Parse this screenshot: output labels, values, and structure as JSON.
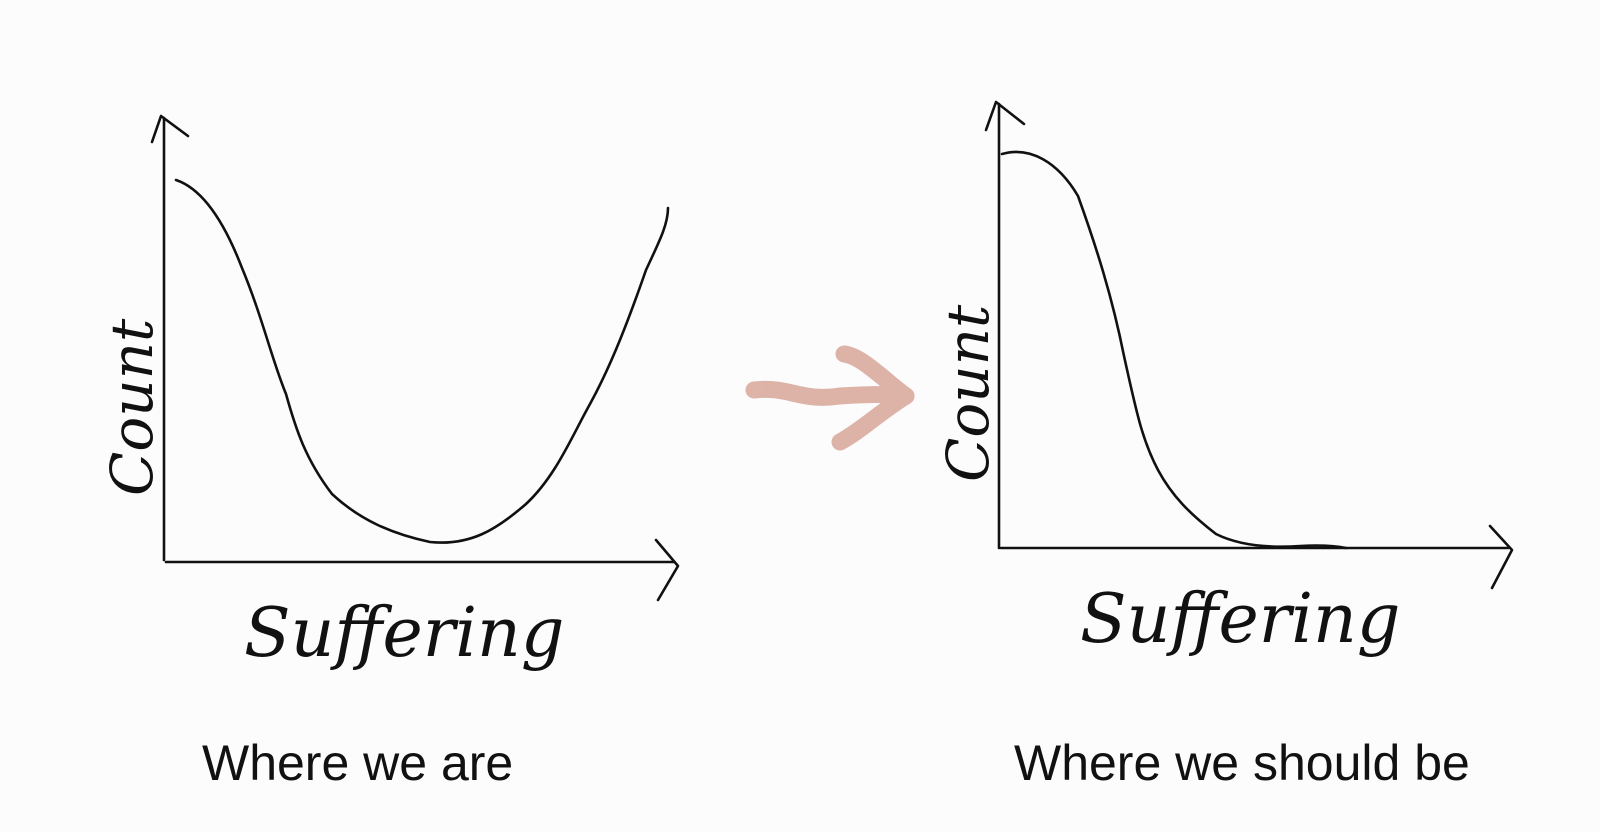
{
  "left_chart": {
    "y_axis_label": "Count",
    "x_axis_label": "Suffering",
    "caption": "Where we are",
    "curve_shape": "U-shaped distribution"
  },
  "right_chart": {
    "y_axis_label": "Count",
    "x_axis_label": "Suffering",
    "caption": "Where we should be",
    "curve_shape": "decreasing to near zero"
  },
  "colors": {
    "ink": "#111111",
    "arrow": "#d9a89c",
    "background": "#fcfcfc"
  },
  "icons": {
    "transition": "right-arrow-icon"
  }
}
